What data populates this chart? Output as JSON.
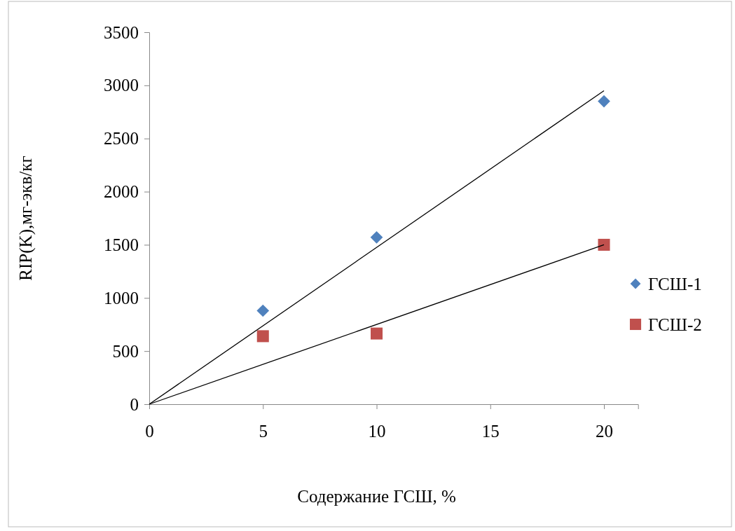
{
  "chart_data": {
    "type": "scatter",
    "xlabel": "Содержание ГСШ, %",
    "ylabel": "RIP(K),мг-экв/кг",
    "xlim": [
      0,
      21.5
    ],
    "xticks": [
      0,
      5,
      10,
      15,
      20
    ],
    "ylim": [
      0,
      3500
    ],
    "yticks": [
      0,
      500,
      1000,
      1500,
      2000,
      2500,
      3000,
      3500
    ],
    "grid": false,
    "legend": "right",
    "series": [
      {
        "name": "ГСШ-1",
        "color": "#4f81bd",
        "marker": "diamond",
        "x": [
          5,
          10,
          20
        ],
        "values": [
          880,
          1570,
          2850
        ]
      },
      {
        "name": "ГСШ-2",
        "color": "#c0504d",
        "marker": "square",
        "x": [
          5,
          10,
          20
        ],
        "values": [
          640,
          665,
          1500
        ]
      },
      {
        "type": "line",
        "color": "#000000",
        "x": [
          0,
          20
        ],
        "values": [
          0,
          2950
        ]
      },
      {
        "type": "line",
        "color": "#000000",
        "x": [
          0,
          20
        ],
        "values": [
          0,
          1500
        ]
      }
    ]
  }
}
